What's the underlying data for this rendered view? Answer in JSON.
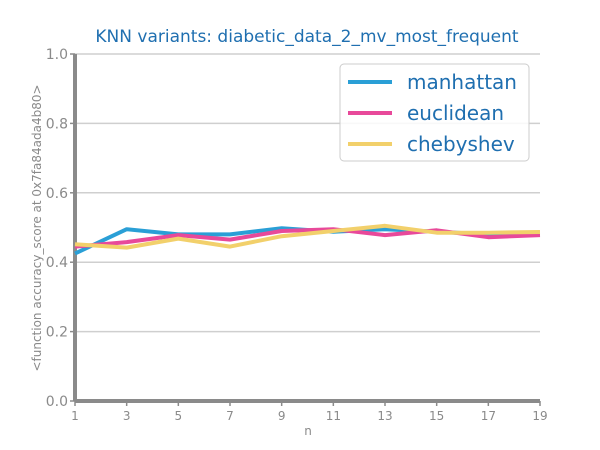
{
  "chart_data": {
    "type": "line",
    "title": "KNN variants: diabetic_data_2_mv_most_frequent",
    "xlabel": "n",
    "ylabel": "<function accuracy_score at 0x7fa84ada4b80>",
    "x": [
      1,
      3,
      5,
      7,
      9,
      11,
      13,
      15,
      17,
      19
    ],
    "xlim": [
      1,
      19
    ],
    "ylim": [
      0.0,
      1.0
    ],
    "yticks": [
      "0.0",
      "0.2",
      "0.4",
      "0.6",
      "0.8",
      "1.0"
    ],
    "xticks": [
      "1",
      "3",
      "5",
      "7",
      "9",
      "11",
      "13",
      "15",
      "17",
      "19"
    ],
    "grid": "horizontal",
    "legend_position": "top-right",
    "series": [
      {
        "name": "manhattan",
        "color": "#2a9fd6",
        "values": [
          0.425,
          0.495,
          0.48,
          0.48,
          0.498,
          0.488,
          0.495,
          0.488,
          0.48,
          0.48
        ]
      },
      {
        "name": "euclidean",
        "color": "#e8499a",
        "values": [
          0.445,
          0.458,
          0.478,
          0.465,
          0.49,
          0.495,
          0.478,
          0.492,
          0.472,
          0.478
        ]
      },
      {
        "name": "chebyshev",
        "color": "#f2d06b",
        "values": [
          0.452,
          0.442,
          0.468,
          0.445,
          0.475,
          0.49,
          0.505,
          0.485,
          0.485,
          0.487
        ]
      }
    ]
  }
}
